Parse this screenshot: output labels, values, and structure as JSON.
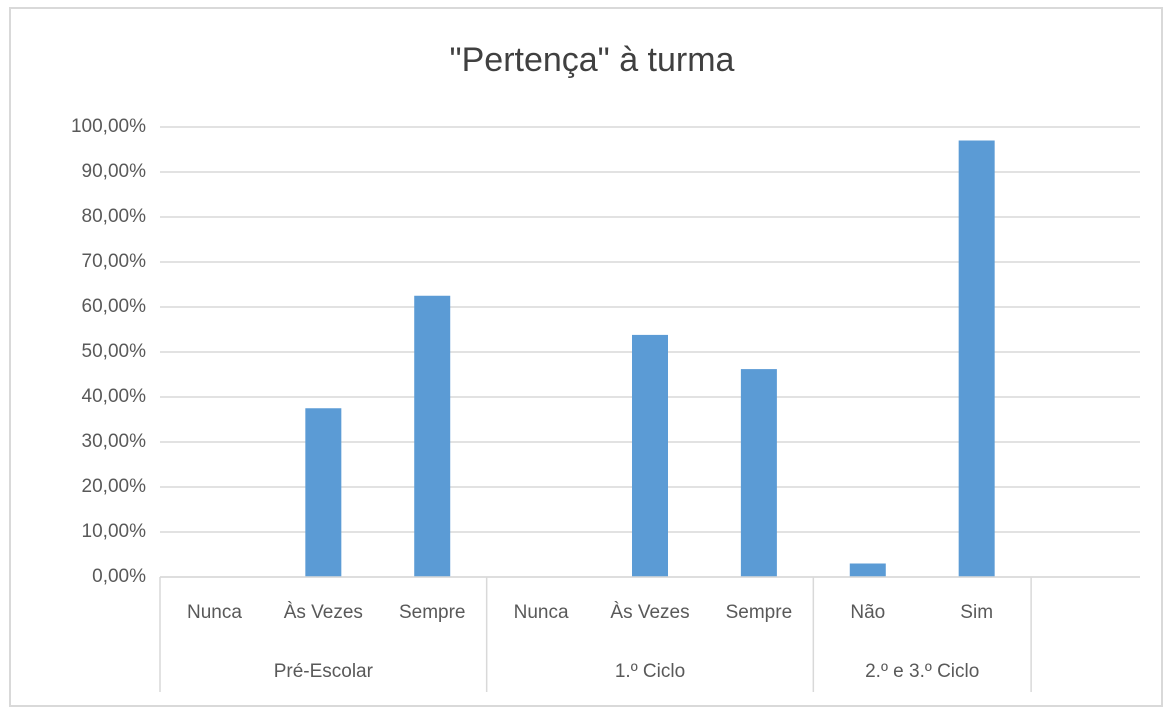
{
  "chart_data": {
    "type": "bar",
    "title": "\"Pertença\" à turma",
    "color": "#5b9bd5",
    "grid": true,
    "groups": [
      {
        "name": "Pré-Escolar",
        "categories": [
          "Nunca",
          "Às Vezes",
          "Sempre"
        ],
        "values": [
          0,
          37.5,
          62.5
        ]
      },
      {
        "name": "1.º Ciclo",
        "categories": [
          "Nunca",
          "Às Vezes",
          "Sempre"
        ],
        "values": [
          0,
          53.8,
          46.2
        ]
      },
      {
        "name": "2.º e 3.º Ciclo",
        "categories": [
          "Não",
          "Sim"
        ],
        "values": [
          3,
          97
        ]
      },
      {
        "name": null,
        "categories": [
          null
        ],
        "values": [
          null
        ]
      }
    ],
    "ylim": [
      0,
      100
    ],
    "yticks": [
      {
        "value": 0,
        "label": "0,00%"
      },
      {
        "value": 10,
        "label": "10,00%"
      },
      {
        "value": 20,
        "label": "20,00%"
      },
      {
        "value": 30,
        "label": "30,00%"
      },
      {
        "value": 40,
        "label": "40,00%"
      },
      {
        "value": 50,
        "label": "50,00%"
      },
      {
        "value": 60,
        "label": "60,00%"
      },
      {
        "value": 70,
        "label": "70,00%"
      },
      {
        "value": 80,
        "label": "80,00%"
      },
      {
        "value": 90,
        "label": "90,00%"
      },
      {
        "value": 100,
        "label": "100,00%"
      }
    ]
  }
}
